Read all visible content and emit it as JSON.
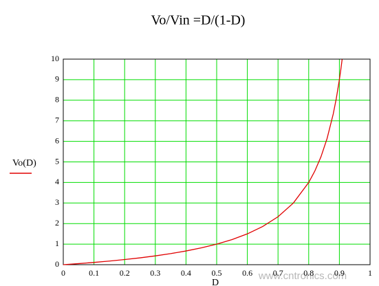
{
  "chart_data": {
    "type": "line",
    "title": "Vo/Vin =D/(1-D)",
    "x_label": "D",
    "x": [
      0,
      0.05,
      0.1,
      0.15,
      0.2,
      0.25,
      0.3,
      0.35,
      0.4,
      0.45,
      0.5,
      0.55,
      0.6,
      0.65,
      0.7,
      0.75,
      0.8,
      0.82,
      0.84,
      0.86,
      0.88,
      0.89,
      0.9,
      0.905,
      0.909
    ],
    "series": [
      {
        "name": "Vo(D)",
        "color": "#e00000",
        "values": [
          0,
          0.053,
          0.111,
          0.176,
          0.25,
          0.333,
          0.429,
          0.538,
          0.667,
          0.818,
          1,
          1.222,
          1.5,
          1.857,
          2.333,
          3,
          4,
          4.556,
          5.25,
          6.143,
          7.333,
          8.091,
          9,
          9.526,
          9.99
        ]
      }
    ],
    "xlim": [
      0,
      1
    ],
    "xticks": [
      0,
      0.1,
      0.2,
      0.3,
      0.4,
      0.5,
      0.6,
      0.7,
      0.8,
      0.9,
      1
    ],
    "ylim": [
      0,
      10
    ],
    "yticks": [
      0,
      1,
      2,
      3,
      4,
      5,
      6,
      7,
      8,
      9,
      10
    ],
    "grid": true,
    "grid_color": "#00dd00",
    "watermark": "www.cntronics.com"
  }
}
